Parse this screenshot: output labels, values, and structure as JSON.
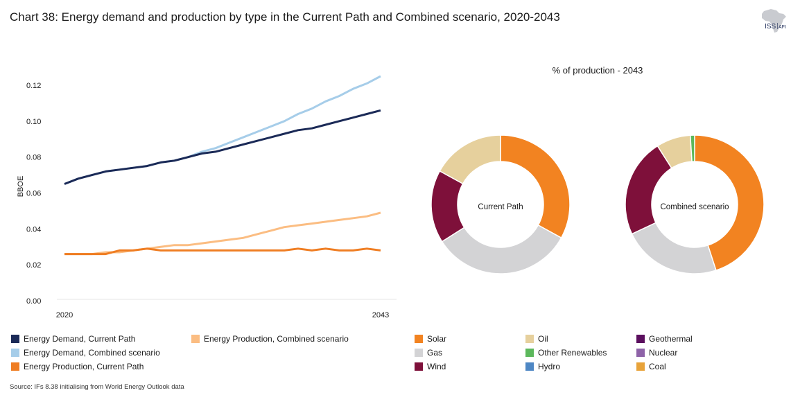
{
  "header": {
    "title": "Chart 38: Energy demand and production by type in the Current Path and Combined scenario, 2020-2043",
    "logo_text": "ISS",
    "logo_subtext": "AFI"
  },
  "source": "Source: IFs 8.38 initialising from World Energy Outlook data",
  "colors": {
    "demand_cp": "#1b2a57",
    "demand_comb": "#a6cde9",
    "prod_cp": "#ef7d22",
    "prod_comb": "#fbbd82",
    "solar": "#f28321",
    "oil": "#e6d09d",
    "geothermal": "#5b0f5e",
    "gas": "#d3d3d5",
    "other_renewables": "#5cb85c",
    "nuclear": "#8e63a8",
    "wind": "#7e103a",
    "hydro": "#4e87c4",
    "coal": "#e8a33a"
  },
  "chart_data": [
    {
      "type": "line",
      "ylabel": "BBOE",
      "ylim": [
        0,
        0.12
      ],
      "yticks": [
        "0.00",
        "0.02",
        "0.04",
        "0.06",
        "0.08",
        "0.10",
        "0.12"
      ],
      "x_tick_labels": [
        "2020",
        "2043"
      ],
      "x": [
        2020,
        2021,
        2022,
        2023,
        2024,
        2025,
        2026,
        2027,
        2028,
        2029,
        2030,
        2031,
        2032,
        2033,
        2034,
        2035,
        2036,
        2037,
        2038,
        2039,
        2040,
        2041,
        2042,
        2043
      ],
      "series": [
        {
          "name": "Energy Demand, Current Path",
          "color_key": "demand_cp",
          "values": [
            0.065,
            0.068,
            0.07,
            0.072,
            0.073,
            0.074,
            0.075,
            0.077,
            0.078,
            0.08,
            0.082,
            0.083,
            0.085,
            0.087,
            0.089,
            0.091,
            0.093,
            0.095,
            0.096,
            0.098,
            0.1,
            0.102,
            0.104,
            0.106
          ]
        },
        {
          "name": "Energy Demand, Combined scenario",
          "color_key": "demand_comb",
          "values": [
            0.065,
            0.068,
            0.07,
            0.072,
            0.073,
            0.074,
            0.075,
            0.077,
            0.078,
            0.08,
            0.083,
            0.085,
            0.088,
            0.091,
            0.094,
            0.097,
            0.1,
            0.104,
            0.107,
            0.111,
            0.114,
            0.118,
            0.121,
            0.125
          ]
        },
        {
          "name": "Energy Production, Current Path",
          "color_key": "prod_cp",
          "values": [
            0.026,
            0.026,
            0.026,
            0.026,
            0.028,
            0.028,
            0.029,
            0.028,
            0.028,
            0.028,
            0.028,
            0.028,
            0.028,
            0.028,
            0.028,
            0.028,
            0.028,
            0.029,
            0.028,
            0.029,
            0.028,
            0.028,
            0.029,
            0.028
          ]
        },
        {
          "name": "Energy Production, Combined scenario",
          "color_key": "prod_comb",
          "values": [
            0.026,
            0.026,
            0.026,
            0.027,
            0.027,
            0.028,
            0.029,
            0.03,
            0.031,
            0.031,
            0.032,
            0.033,
            0.034,
            0.035,
            0.037,
            0.039,
            0.041,
            0.042,
            0.043,
            0.044,
            0.045,
            0.046,
            0.047,
            0.049
          ]
        }
      ],
      "legend": [
        {
          "name": "Energy Demand, Current Path",
          "color_key": "demand_cp"
        },
        {
          "name": "Energy Production, Combined scenario",
          "color_key": "prod_comb"
        },
        {
          "name": "Energy Demand, Combined scenario",
          "color_key": "demand_comb"
        },
        {
          "name": "Energy Production, Current Path",
          "color_key": "prod_cp"
        }
      ]
    },
    {
      "type": "pie",
      "title": "% of production - 2043",
      "donuts": [
        {
          "label": "Current Path",
          "slices": [
            {
              "name": "Solar",
              "value": 33,
              "color_key": "solar"
            },
            {
              "name": "Gas",
              "value": 33,
              "color_key": "gas"
            },
            {
              "name": "Wind",
              "value": 17,
              "color_key": "wind"
            },
            {
              "name": "Oil",
              "value": 17,
              "color_key": "oil"
            }
          ]
        },
        {
          "label": "Combined scenario",
          "slices": [
            {
              "name": "Solar",
              "value": 45,
              "color_key": "solar"
            },
            {
              "name": "Gas",
              "value": 23,
              "color_key": "gas"
            },
            {
              "name": "Wind",
              "value": 23,
              "color_key": "wind"
            },
            {
              "name": "Oil",
              "value": 8,
              "color_key": "oil"
            },
            {
              "name": "Other Renewables",
              "value": 1,
              "color_key": "other_renewables"
            }
          ]
        }
      ],
      "legend": [
        {
          "name": "Solar",
          "color_key": "solar"
        },
        {
          "name": "Oil",
          "color_key": "oil"
        },
        {
          "name": "Geothermal",
          "color_key": "geothermal"
        },
        {
          "name": "Gas",
          "color_key": "gas"
        },
        {
          "name": "Other Renewables",
          "color_key": "other_renewables"
        },
        {
          "name": "Nuclear",
          "color_key": "nuclear"
        },
        {
          "name": "Wind",
          "color_key": "wind"
        },
        {
          "name": "Hydro",
          "color_key": "hydro"
        },
        {
          "name": "Coal",
          "color_key": "coal"
        }
      ]
    }
  ]
}
